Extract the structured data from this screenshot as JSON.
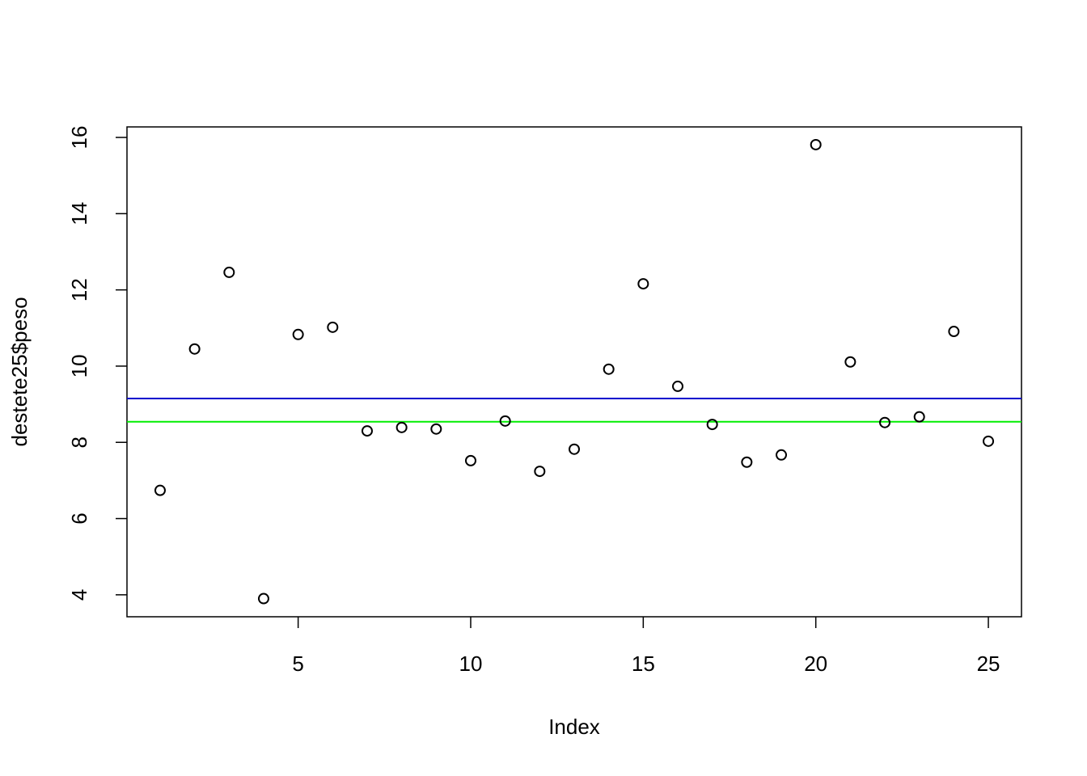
{
  "chart_data": {
    "type": "scatter",
    "x": [
      1,
      2,
      3,
      4,
      5,
      6,
      7,
      8,
      9,
      10,
      11,
      12,
      13,
      14,
      15,
      16,
      17,
      18,
      19,
      20,
      21,
      22,
      23,
      24,
      25
    ],
    "values": [
      6.74,
      10.45,
      12.46,
      3.9,
      10.83,
      11.02,
      8.3,
      8.39,
      8.35,
      7.52,
      8.56,
      7.24,
      7.82,
      9.92,
      12.16,
      9.47,
      8.47,
      7.48,
      7.67,
      15.81,
      10.11,
      8.52,
      8.67,
      10.91,
      8.03
    ],
    "color": "#000000",
    "xlabel": "Index",
    "ylabel": "destete25$peso",
    "xlim": [
      0.04,
      25.96
    ],
    "ylim": [
      3.424,
      16.276
    ],
    "xticks": [
      5,
      10,
      15,
      20,
      25
    ],
    "yticks": [
      4,
      6,
      8,
      10,
      12,
      14,
      16
    ],
    "hlines": [
      {
        "value": 9.15,
        "color": "#0000cd"
      },
      {
        "value": 8.54,
        "color": "#00ee00"
      }
    ]
  }
}
